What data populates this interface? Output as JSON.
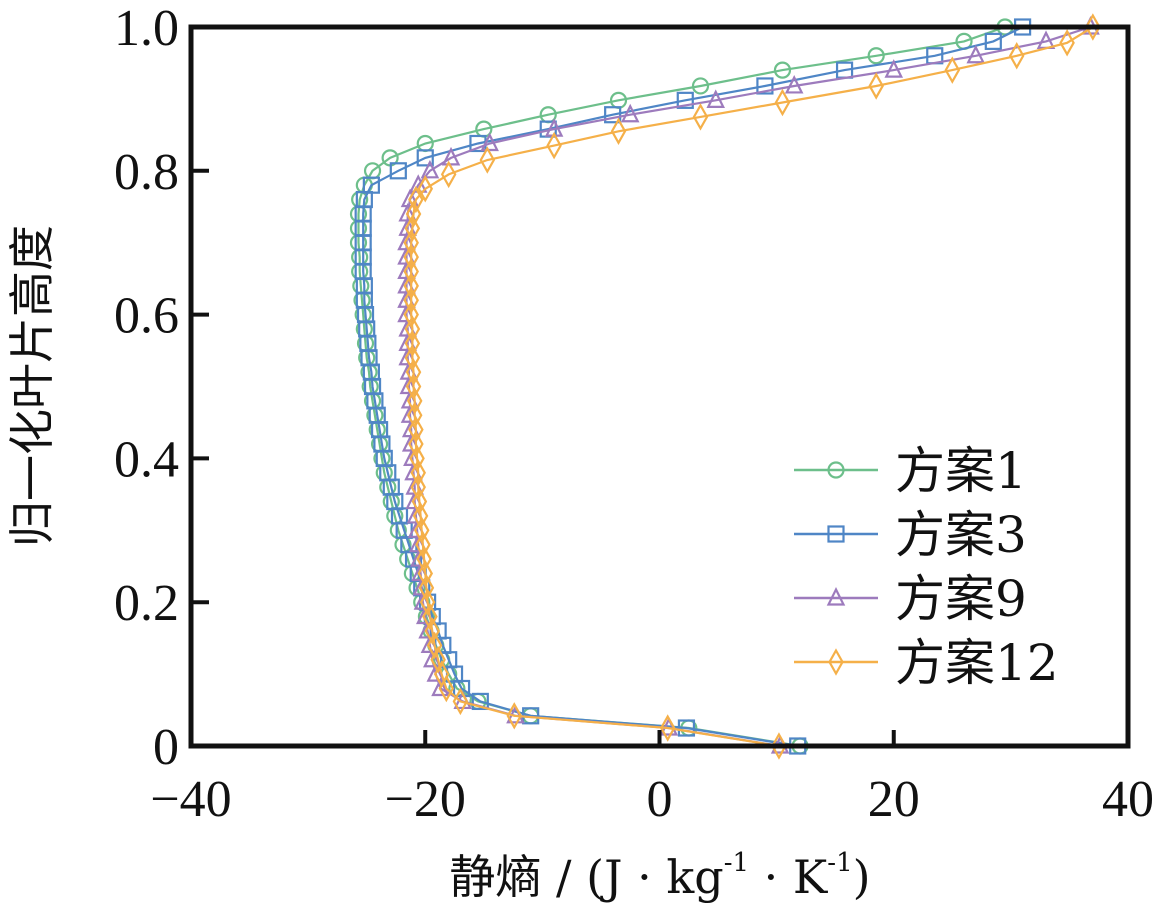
{
  "chart_data": {
    "type": "line",
    "title": "",
    "xlabel": "静熵 / (J · kg⁻¹ · K⁻¹)",
    "xlabel_parts": {
      "main": "静熵 / (J · kg",
      "sup1": "-1",
      "mid": " · K",
      "sup2": "-1",
      "end": ")"
    },
    "ylabel": "归一化叶片高度",
    "xlim": [
      -40,
      40
    ],
    "ylim": [
      0,
      1.0
    ],
    "xticks": [
      -40,
      -20,
      0,
      20,
      40
    ],
    "xtick_labels": [
      "−40",
      "−20",
      "0",
      "20",
      "40"
    ],
    "yticks": [
      0,
      0.2,
      0.4,
      0.6,
      0.8,
      1.0
    ],
    "ytick_labels": [
      "0",
      "0.2",
      "0.4",
      "0.6",
      "0.8",
      "1.0"
    ],
    "grid": false,
    "legend_position": "lower-right",
    "series": [
      {
        "name": "方案1",
        "color": "#6dbf8b",
        "marker": "circle",
        "points": [
          [
            12,
            0.0
          ],
          [
            2.5,
            0.025
          ],
          [
            -11,
            0.042
          ],
          [
            -15.5,
            0.062
          ],
          [
            -17.3,
            0.08
          ],
          [
            -18,
            0.1
          ],
          [
            -18.6,
            0.12
          ],
          [
            -19.1,
            0.14
          ],
          [
            -19.5,
            0.16
          ],
          [
            -19.9,
            0.18
          ],
          [
            -20.3,
            0.2
          ],
          [
            -20.7,
            0.22
          ],
          [
            -21.1,
            0.24
          ],
          [
            -21.5,
            0.26
          ],
          [
            -21.9,
            0.28
          ],
          [
            -22.3,
            0.3
          ],
          [
            -22.6,
            0.32
          ],
          [
            -22.9,
            0.34
          ],
          [
            -23.2,
            0.36
          ],
          [
            -23.5,
            0.38
          ],
          [
            -23.7,
            0.4
          ],
          [
            -23.9,
            0.42
          ],
          [
            -24.1,
            0.44
          ],
          [
            -24.3,
            0.46
          ],
          [
            -24.5,
            0.48
          ],
          [
            -24.7,
            0.5
          ],
          [
            -24.8,
            0.52
          ],
          [
            -25.0,
            0.54
          ],
          [
            -25.1,
            0.56
          ],
          [
            -25.2,
            0.58
          ],
          [
            -25.3,
            0.6
          ],
          [
            -25.4,
            0.62
          ],
          [
            -25.5,
            0.64
          ],
          [
            -25.6,
            0.66
          ],
          [
            -25.6,
            0.68
          ],
          [
            -25.7,
            0.7
          ],
          [
            -25.7,
            0.72
          ],
          [
            -25.7,
            0.74
          ],
          [
            -25.6,
            0.76
          ],
          [
            -25.2,
            0.78
          ],
          [
            -24.5,
            0.8
          ],
          [
            -23,
            0.818
          ],
          [
            -20,
            0.838
          ],
          [
            -15,
            0.858
          ],
          [
            -9.5,
            0.878
          ],
          [
            -3.5,
            0.898
          ],
          [
            3.5,
            0.918
          ],
          [
            10.5,
            0.94
          ],
          [
            18.5,
            0.96
          ],
          [
            26,
            0.98
          ],
          [
            29.5,
            1.0
          ]
        ]
      },
      {
        "name": "方案3",
        "color": "#4f86c6",
        "marker": "square",
        "points": [
          [
            11.8,
            0.0
          ],
          [
            2.3,
            0.025
          ],
          [
            -11,
            0.042
          ],
          [
            -15.3,
            0.062
          ],
          [
            -16.9,
            0.08
          ],
          [
            -17.5,
            0.1
          ],
          [
            -18,
            0.12
          ],
          [
            -18.5,
            0.14
          ],
          [
            -18.9,
            0.16
          ],
          [
            -19.4,
            0.18
          ],
          [
            -19.8,
            0.2
          ],
          [
            -20.3,
            0.22
          ],
          [
            -20.6,
            0.24
          ],
          [
            -21,
            0.26
          ],
          [
            -21.4,
            0.28
          ],
          [
            -21.8,
            0.3
          ],
          [
            -22.2,
            0.32
          ],
          [
            -22.6,
            0.34
          ],
          [
            -22.9,
            0.36
          ],
          [
            -23.2,
            0.38
          ],
          [
            -23.5,
            0.4
          ],
          [
            -23.7,
            0.42
          ],
          [
            -23.9,
            0.44
          ],
          [
            -24.1,
            0.46
          ],
          [
            -24.3,
            0.48
          ],
          [
            -24.5,
            0.5
          ],
          [
            -24.6,
            0.52
          ],
          [
            -24.8,
            0.54
          ],
          [
            -24.9,
            0.56
          ],
          [
            -25.0,
            0.58
          ],
          [
            -25.1,
            0.6
          ],
          [
            -25.2,
            0.62
          ],
          [
            -25.2,
            0.64
          ],
          [
            -25.3,
            0.66
          ],
          [
            -25.3,
            0.68
          ],
          [
            -25.3,
            0.7
          ],
          [
            -25.3,
            0.72
          ],
          [
            -25.3,
            0.74
          ],
          [
            -25.2,
            0.76
          ],
          [
            -24.6,
            0.78
          ],
          [
            -22.3,
            0.8
          ],
          [
            -20,
            0.818
          ],
          [
            -15.5,
            0.838
          ],
          [
            -9.5,
            0.858
          ],
          [
            -4,
            0.878
          ],
          [
            2.2,
            0.898
          ],
          [
            9,
            0.918
          ],
          [
            15.8,
            0.94
          ],
          [
            23.5,
            0.96
          ],
          [
            28.5,
            0.98
          ],
          [
            31,
            1.0
          ]
        ]
      },
      {
        "name": "方案9",
        "color": "#9d7bbd",
        "marker": "triangle",
        "points": [
          [
            10.3,
            0.0
          ],
          [
            0.8,
            0.025
          ],
          [
            -12.3,
            0.042
          ],
          [
            -16.8,
            0.062
          ],
          [
            -18.7,
            0.08
          ],
          [
            -19.1,
            0.1
          ],
          [
            -19.4,
            0.12
          ],
          [
            -19.6,
            0.14
          ],
          [
            -19.8,
            0.16
          ],
          [
            -20,
            0.18
          ],
          [
            -20.2,
            0.2
          ],
          [
            -20.3,
            0.22
          ],
          [
            -20.4,
            0.24
          ],
          [
            -20.5,
            0.26
          ],
          [
            -20.6,
            0.28
          ],
          [
            -20.7,
            0.3
          ],
          [
            -20.8,
            0.32
          ],
          [
            -20.9,
            0.34
          ],
          [
            -20.9,
            0.36
          ],
          [
            -21,
            0.38
          ],
          [
            -21.1,
            0.4
          ],
          [
            -21.2,
            0.42
          ],
          [
            -21.2,
            0.44
          ],
          [
            -21.3,
            0.46
          ],
          [
            -21.3,
            0.48
          ],
          [
            -21.4,
            0.5
          ],
          [
            -21.4,
            0.52
          ],
          [
            -21.5,
            0.54
          ],
          [
            -21.5,
            0.56
          ],
          [
            -21.5,
            0.58
          ],
          [
            -21.6,
            0.6
          ],
          [
            -21.6,
            0.62
          ],
          [
            -21.6,
            0.64
          ],
          [
            -21.6,
            0.66
          ],
          [
            -21.6,
            0.68
          ],
          [
            -21.6,
            0.7
          ],
          [
            -21.5,
            0.72
          ],
          [
            -21.5,
            0.74
          ],
          [
            -21.3,
            0.76
          ],
          [
            -20.6,
            0.78
          ],
          [
            -19.6,
            0.8
          ],
          [
            -17.8,
            0.818
          ],
          [
            -14.5,
            0.838
          ],
          [
            -9,
            0.858
          ],
          [
            -2.5,
            0.878
          ],
          [
            4.8,
            0.898
          ],
          [
            11.5,
            0.918
          ],
          [
            20,
            0.94
          ],
          [
            27,
            0.96
          ],
          [
            33,
            0.98
          ],
          [
            36.8,
            1.0
          ]
        ]
      },
      {
        "name": "方案12",
        "color": "#f5b049",
        "marker": "diamond",
        "points": [
          [
            10.2,
            0.0
          ],
          [
            0.7,
            0.025
          ],
          [
            -12.4,
            0.042
          ],
          [
            -17,
            0.062
          ],
          [
            -18.2,
            0.08
          ],
          [
            -18.6,
            0.1
          ],
          [
            -18.9,
            0.12
          ],
          [
            -19.2,
            0.14
          ],
          [
            -19.4,
            0.16
          ],
          [
            -19.6,
            0.18
          ],
          [
            -19.8,
            0.2
          ],
          [
            -19.9,
            0.22
          ],
          [
            -20,
            0.24
          ],
          [
            -20.1,
            0.26
          ],
          [
            -20.2,
            0.28
          ],
          [
            -20.3,
            0.3
          ],
          [
            -20.4,
            0.32
          ],
          [
            -20.5,
            0.34
          ],
          [
            -20.6,
            0.36
          ],
          [
            -20.6,
            0.38
          ],
          [
            -20.7,
            0.4
          ],
          [
            -20.8,
            0.42
          ],
          [
            -20.8,
            0.44
          ],
          [
            -20.9,
            0.46
          ],
          [
            -20.9,
            0.48
          ],
          [
            -21,
            0.5
          ],
          [
            -21,
            0.52
          ],
          [
            -21.1,
            0.54
          ],
          [
            -21.1,
            0.56
          ],
          [
            -21.1,
            0.58
          ],
          [
            -21.2,
            0.6
          ],
          [
            -21.2,
            0.62
          ],
          [
            -21.2,
            0.64
          ],
          [
            -21.2,
            0.66
          ],
          [
            -21.2,
            0.68
          ],
          [
            -21.2,
            0.7
          ],
          [
            -21.1,
            0.72
          ],
          [
            -21,
            0.74
          ],
          [
            -20.8,
            0.76
          ],
          [
            -20,
            0.775
          ],
          [
            -18,
            0.795
          ],
          [
            -14.7,
            0.815
          ],
          [
            -9,
            0.835
          ],
          [
            -3.5,
            0.855
          ],
          [
            3.5,
            0.875
          ],
          [
            10.5,
            0.895
          ],
          [
            18.5,
            0.918
          ],
          [
            25,
            0.94
          ],
          [
            30.5,
            0.96
          ],
          [
            34.8,
            0.978
          ],
          [
            37,
            1.0
          ]
        ]
      }
    ]
  }
}
